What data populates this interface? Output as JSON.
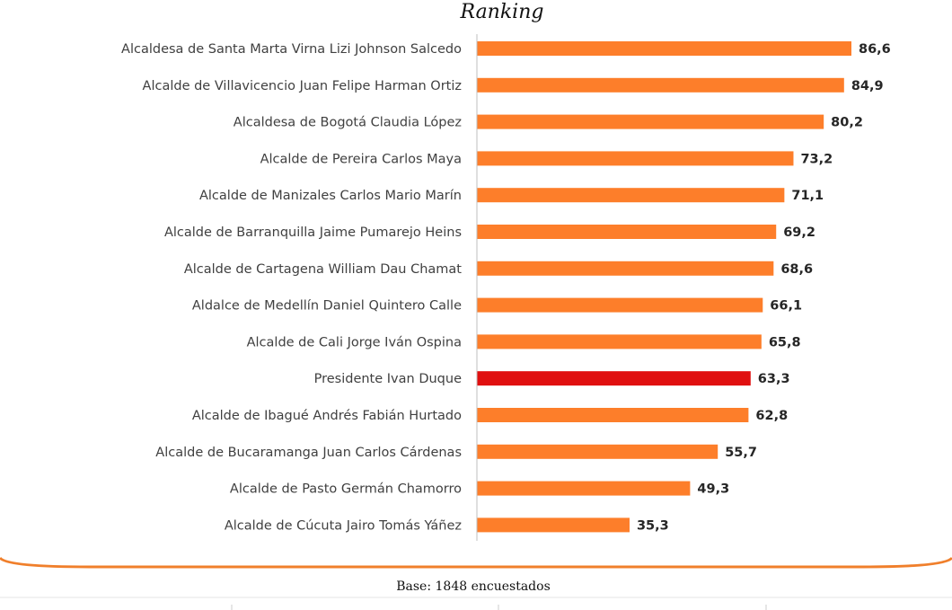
{
  "chart_data": {
    "type": "bar",
    "orientation": "horizontal",
    "title": "Ranking",
    "xlabel": "",
    "ylabel": "",
    "xlim": [
      0,
      100
    ],
    "grid": false,
    "legend": "none",
    "categories": [
      "Alcaldesa de Santa Marta Virna Lizi Johnson Salcedo",
      "Alcalde de Villavicencio Juan Felipe Harman Ortiz",
      "Alcaldesa de Bogotá Claudia López",
      "Alcalde de Pereira Carlos Maya",
      "Alcalde de Manizales Carlos Mario Marín",
      "Alcalde de Barranquilla Jaime Pumarejo Heins",
      "Alcalde de Cartagena William Dau Chamat",
      "Aldalce de Medellín Daniel Quintero Calle",
      "Alcalde de Cali Jorge Iván Ospina",
      "Presidente Ivan Duque",
      "Alcalde de Ibagué Andrés Fabián Hurtado",
      "Alcalde de Bucaramanga Juan Carlos Cárdenas",
      "Alcalde de Pasto Germán Chamorro",
      "Alcalde de Cúcuta Jairo Tomás Yáñez"
    ],
    "values": [
      86.6,
      84.9,
      80.2,
      73.2,
      71.1,
      69.2,
      68.6,
      66.1,
      65.8,
      63.3,
      62.8,
      55.7,
      49.3,
      35.3
    ],
    "value_labels": [
      "86,6",
      "84,9",
      "80,2",
      "73,2",
      "71,1",
      "69,2",
      "68,6",
      "66,1",
      "65,8",
      "63,3",
      "62,8",
      "55,7",
      "49,3",
      "35,3"
    ],
    "highlight_index": 9,
    "colors": {
      "bar": "#fd7e2a",
      "highlight": "#e00f0f",
      "axis": "#bfbfbf",
      "decor_curve": "#f07f2b"
    }
  },
  "footer": {
    "base_text": "Base: 1848 encuestados"
  }
}
